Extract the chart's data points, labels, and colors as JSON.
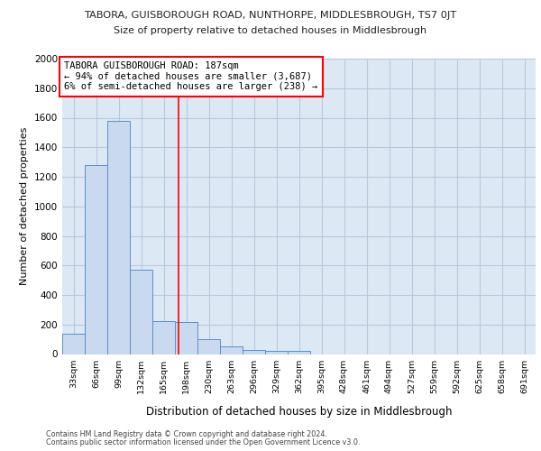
{
  "title1": "TABORA, GUISBOROUGH ROAD, NUNTHORPE, MIDDLESBROUGH, TS7 0JT",
  "title2": "Size of property relative to detached houses in Middlesbrough",
  "xlabel": "Distribution of detached houses by size in Middlesbrough",
  "ylabel": "Number of detached properties",
  "footer1": "Contains HM Land Registry data © Crown copyright and database right 2024.",
  "footer2": "Contains public sector information licensed under the Open Government Licence v3.0.",
  "annotation_line1": "TABORA GUISBOROUGH ROAD: 187sqm",
  "annotation_line2": "← 94% of detached houses are smaller (3,687)",
  "annotation_line3": "6% of semi-detached houses are larger (238) →",
  "bar_color": "#c9d9ef",
  "bar_edge_color": "#5b8fc9",
  "grid_color": "#b8c8dc",
  "background_color": "#dde8f5",
  "red_line_x": 187,
  "categories": [
    "33sqm",
    "66sqm",
    "99sqm",
    "132sqm",
    "165sqm",
    "198sqm",
    "230sqm",
    "263sqm",
    "296sqm",
    "329sqm",
    "362sqm",
    "395sqm",
    "428sqm",
    "461sqm",
    "494sqm",
    "527sqm",
    "559sqm",
    "592sqm",
    "625sqm",
    "658sqm",
    "691sqm"
  ],
  "bin_edges": [
    16.5,
    49.5,
    82.5,
    115.5,
    148.5,
    181.5,
    214.5,
    247.5,
    280.5,
    313.5,
    346.5,
    379.5,
    412.5,
    445.5,
    478.5,
    511.5,
    544.5,
    577.5,
    610.5,
    643.5,
    676.5,
    709.5
  ],
  "values": [
    135,
    1280,
    1580,
    570,
    220,
    215,
    100,
    50,
    25,
    20,
    20,
    0,
    0,
    0,
    0,
    0,
    0,
    0,
    0,
    0,
    0
  ],
  "ylim": [
    0,
    2000
  ],
  "yticks": [
    0,
    200,
    400,
    600,
    800,
    1000,
    1200,
    1400,
    1600,
    1800,
    2000
  ]
}
